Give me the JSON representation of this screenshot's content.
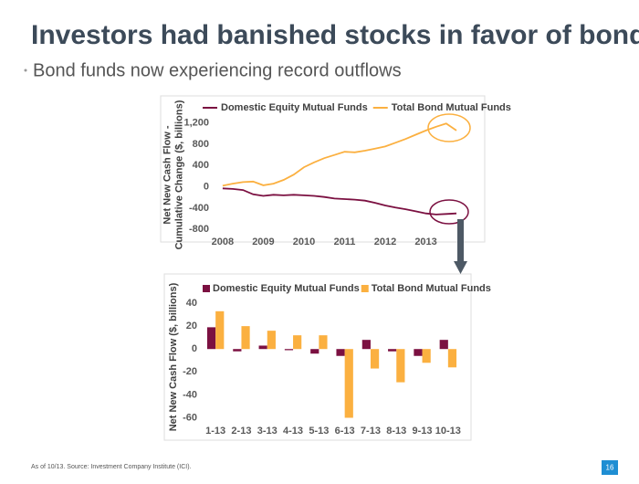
{
  "header": {
    "title": "Investors had banished stocks in favor of bonds",
    "subtitle": "Bond funds now experiencing record outflows"
  },
  "footer": {
    "note": "As of 10/13. Source: Investment Company Institute (ICI).",
    "page": "16"
  },
  "chart_data": [
    {
      "type": "line",
      "ylabel": [
        "Net New Cash Flow -",
        "Cumulative Change ($, billions)"
      ],
      "x": [
        2008,
        2008.25,
        2008.5,
        2008.75,
        2009,
        2009.25,
        2009.5,
        2009.75,
        2010,
        2010.25,
        2010.5,
        2010.75,
        2011,
        2011.25,
        2011.5,
        2011.75,
        2012,
        2012.25,
        2012.5,
        2012.75,
        2013,
        2013.25,
        2013.5,
        2013.75
      ],
      "series": [
        {
          "name": "Domestic Equity Mutual Funds",
          "color": "#7b1041",
          "values": [
            -30,
            -40,
            -60,
            -140,
            -170,
            -150,
            -160,
            -150,
            -160,
            -170,
            -190,
            -220,
            -230,
            -240,
            -260,
            -300,
            -350,
            -390,
            -420,
            -460,
            -500,
            -520,
            -510,
            -500
          ]
        },
        {
          "name": "Total Bond Mutual Funds",
          "color": "#fbb040",
          "values": [
            20,
            60,
            90,
            100,
            30,
            60,
            130,
            230,
            370,
            460,
            540,
            600,
            660,
            650,
            680,
            720,
            760,
            830,
            900,
            980,
            1060,
            1130,
            1190,
            1060
          ]
        }
      ],
      "xlim": [
        2007.8,
        2014.2
      ],
      "xticks": [
        2008,
        2009,
        2010,
        2011,
        2012,
        2013
      ],
      "ylim": [
        -900,
        1350
      ],
      "yticks": [
        -800,
        -400,
        0,
        400,
        800,
        {
          "value": 1200,
          "label": "1,200"
        }
      ],
      "grid": false
    },
    {
      "type": "bar",
      "ylabel": [
        "Net New Cash Flow ($, billions)"
      ],
      "categories": [
        "1-13",
        "2-13",
        "3-13",
        "4-13",
        "5-13",
        "6-13",
        "7-13",
        "8-13",
        "9-13",
        "10-13"
      ],
      "series": [
        {
          "name": "Domestic Equity Mutual Funds",
          "color": "#7b1041",
          "values": [
            19,
            -2,
            3,
            -1,
            -4,
            -6,
            8,
            -2,
            -6,
            8
          ]
        },
        {
          "name": "Total Bond Mutual Funds",
          "color": "#fbb040",
          "values": [
            33,
            20,
            16,
            12,
            12,
            -60,
            -17,
            -29,
            -12,
            -16
          ]
        }
      ],
      "ylim": [
        -62,
        48
      ],
      "yticks": [
        -60,
        -40,
        -20,
        0,
        20,
        40
      ],
      "grid": false
    }
  ]
}
